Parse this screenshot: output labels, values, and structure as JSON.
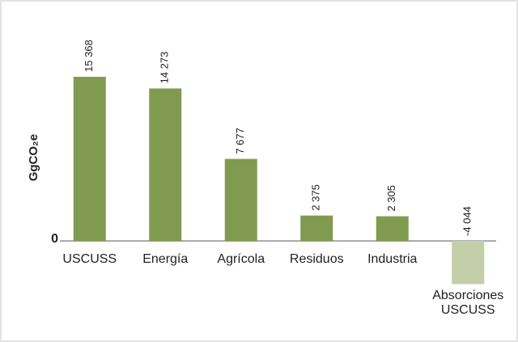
{
  "chart_data": {
    "type": "bar",
    "ylabel": "GgCO₂e",
    "categories": [
      "USCUSS",
      "Energía",
      "Agrícola",
      "Residuos",
      "Industria",
      "Absorciones USCUSS"
    ],
    "values": [
      15368,
      14273,
      7677,
      2375,
      2305,
      -4044
    ],
    "value_labels": [
      "15 368",
      "14 273",
      "7 677",
      "2 375",
      "2 305",
      "-4 044"
    ],
    "colors": [
      "#809b50",
      "#809b50",
      "#809b50",
      "#809b50",
      "#809b50",
      "#c4cea9"
    ],
    "ylim": [
      -5000,
      17000
    ],
    "yticks": [
      0
    ],
    "grid": false
  }
}
